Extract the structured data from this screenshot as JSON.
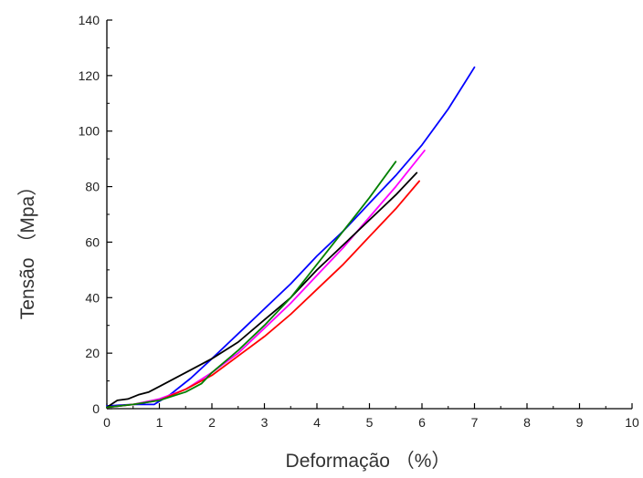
{
  "chart_data": {
    "type": "line",
    "xlabel": "Deformação （%）",
    "ylabel": "Tensão （Mpa）",
    "xlim": [
      0,
      10
    ],
    "ylim": [
      0,
      140
    ],
    "x_ticks": [
      0,
      1,
      2,
      3,
      4,
      5,
      6,
      7,
      8,
      9,
      10
    ],
    "y_ticks": [
      0,
      20,
      40,
      60,
      80,
      100,
      120,
      140
    ],
    "grid": false,
    "series": [
      {
        "color": "#0000ff",
        "x": [
          0,
          0.5,
          0.9,
          1.2,
          1.6,
          2.0,
          2.5,
          3.0,
          3.5,
          4.0,
          4.5,
          5.0,
          5.5,
          6.0,
          6.5,
          7.0
        ],
        "y": [
          1,
          1.5,
          1.5,
          5,
          11,
          18,
          27,
          36,
          45,
          55,
          64,
          74,
          84,
          95,
          108,
          123
        ]
      },
      {
        "color": "#ff00ff",
        "x": [
          0,
          0.5,
          1.0,
          1.5,
          2.0,
          2.5,
          3.0,
          3.5,
          4.0,
          4.5,
          5.0,
          5.5,
          6.05
        ],
        "y": [
          0.5,
          1.5,
          3.5,
          7,
          13,
          20,
          29,
          38,
          48,
          58,
          69,
          80,
          93
        ]
      },
      {
        "color": "#000000",
        "x": [
          0,
          0.2,
          0.4,
          0.6,
          0.8,
          1.0,
          1.5,
          2.0,
          2.5,
          3.0,
          3.5,
          4.0,
          4.5,
          5.0,
          5.5,
          5.9
        ],
        "y": [
          0.5,
          3,
          3.5,
          5,
          6,
          8,
          13,
          18,
          24,
          32,
          40,
          50,
          59,
          68,
          77,
          85
        ]
      },
      {
        "color": "#ff0000",
        "x": [
          0,
          0.5,
          1.0,
          1.5,
          2.0,
          2.5,
          3.0,
          3.5,
          4.0,
          4.5,
          5.0,
          5.5,
          5.95
        ],
        "y": [
          0.5,
          1.5,
          3,
          7,
          12,
          19,
          26,
          34,
          43,
          52,
          62,
          72,
          82
        ]
      },
      {
        "color": "#008000",
        "x": [
          0,
          0.5,
          1.0,
          1.5,
          1.8,
          2.0,
          2.5,
          3.0,
          3.5,
          4.0,
          4.5,
          5.0,
          5.5
        ],
        "y": [
          0.5,
          1.5,
          3,
          6,
          9,
          13,
          21,
          30,
          40,
          52,
          64,
          76,
          89
        ]
      }
    ]
  }
}
